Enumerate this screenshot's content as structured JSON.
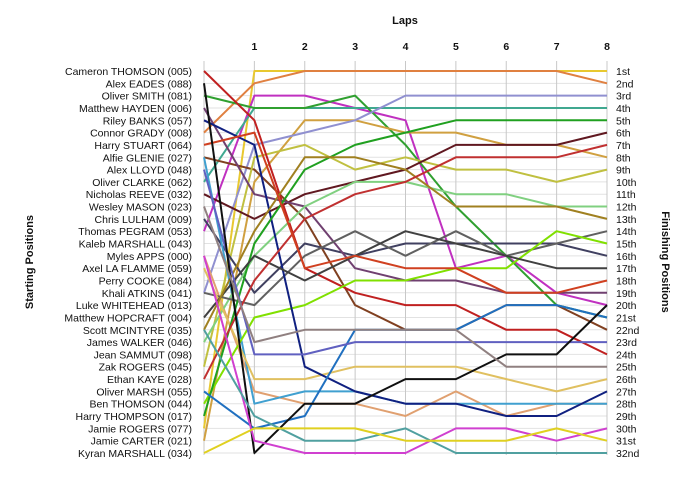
{
  "chart_data": {
    "type": "line",
    "title": "",
    "xlabel": "Laps",
    "ylabel_left": "Starting Positions",
    "ylabel_right": "Finishing Positions",
    "x": [
      0,
      1,
      2,
      3,
      4,
      5,
      6,
      7,
      8
    ],
    "x_tick_labels": [
      "1",
      "2",
      "3",
      "4",
      "5",
      "6",
      "7",
      "8"
    ],
    "y_range": [
      1,
      32
    ],
    "grid": true,
    "drivers": [
      "Cameron THOMSON (005)",
      "Alex EADES (088)",
      "Oliver SMITH (081)",
      "Matthew HAYDEN (006)",
      "Riley BANKS (057)",
      "Connor GRADY (008)",
      "Harry STUART (064)",
      "Alfie GLENIE (027)",
      "Alex LLOYD (048)",
      "Oliver CLARKE (062)",
      "Nicholas REEVE (032)",
      "Wesley MASON (023)",
      "Chris LULHAM (009)",
      "Thomas PEGRAM (053)",
      "Kaleb MARSHALL (043)",
      "Myles APPS (000)",
      "Axel LA FLAMME (059)",
      "Perry COOKE (084)",
      "Khali ATKINS (041)",
      "Luke WHITEHEAD (013)",
      "Matthew HOPCRAFT (004)",
      "Scott MCINTYRE (035)",
      "James WALKER (046)",
      "Jean SAMMUT (098)",
      "Zak ROGERS (045)",
      "Ethan KAYE (028)",
      "Oliver MARSH (055)",
      "Ben THOMSON (044)",
      "Harry THOMPSON (017)",
      "Jamie ROGERS (077)",
      "Jamie CARTER (021)",
      "Kyran MARSHALL (034)"
    ],
    "finish_labels": [
      "1st",
      "2nd",
      "3rd",
      "4th",
      "5th",
      "6th",
      "7th",
      "8th",
      "9th",
      "10th",
      "11th",
      "12th",
      "13th",
      "14th",
      "15th",
      "16th",
      "17th",
      "18th",
      "19th",
      "20th",
      "21st",
      "22nd",
      "23rd",
      "24th",
      "25th",
      "26th",
      "27th",
      "28th",
      "29th",
      "30th",
      "31st",
      "32nd"
    ],
    "series": [
      {
        "color": "#e8c830",
        "positions": [
          30,
          1,
          1,
          1,
          1,
          1,
          1,
          1,
          1
        ]
      },
      {
        "color": "#e08040",
        "positions": [
          6,
          2,
          1,
          1,
          1,
          1,
          1,
          1,
          2
        ]
      },
      {
        "color": "#c030c0",
        "positions": [
          14,
          3,
          3,
          4,
          5,
          17,
          16,
          19,
          20
        ]
      },
      {
        "color": "#40a890",
        "positions": [
          10,
          4,
          4,
          4,
          4,
          4,
          4,
          4,
          4
        ]
      },
      {
        "color": "#30a030",
        "positions": [
          3,
          4,
          4,
          3,
          7,
          12,
          16,
          20,
          21
        ]
      },
      {
        "color": "#d0a040",
        "positions": [
          31,
          10,
          5,
          5,
          6,
          6,
          7,
          7,
          8
        ]
      },
      {
        "color": "#9090d0",
        "positions": [
          19,
          7,
          6,
          5,
          3,
          3,
          3,
          3,
          3
        ]
      },
      {
        "color": "#804020",
        "positions": [
          8,
          9,
          13,
          20,
          22,
          22,
          20,
          20,
          22
        ]
      },
      {
        "color": "#c0c040",
        "positions": [
          25,
          8,
          7,
          9,
          8,
          9,
          9,
          10,
          9
        ]
      },
      {
        "color": "#e0a070",
        "positions": [
          16,
          27,
          28,
          28,
          29,
          27,
          29,
          28,
          28
        ]
      },
      {
        "color": "#601820",
        "positions": [
          11,
          13,
          11,
          10,
          9,
          7,
          7,
          7,
          6
        ]
      },
      {
        "color": "#c02020",
        "positions": [
          1,
          5,
          17,
          19,
          20,
          20,
          22,
          22,
          24
        ]
      },
      {
        "color": "#404060",
        "positions": [
          13,
          19,
          15,
          16,
          15,
          15,
          15,
          15,
          16
        ]
      },
      {
        "color": "#40a0d0",
        "positions": [
          8,
          28,
          27,
          27,
          28,
          28,
          28,
          28,
          28
        ]
      },
      {
        "color": "#704070",
        "positions": [
          4,
          11,
          12,
          17,
          18,
          18,
          19,
          19,
          19
        ]
      },
      {
        "color": "#80d080",
        "positions": [
          23,
          16,
          12,
          10,
          10,
          11,
          11,
          12,
          12
        ]
      },
      {
        "color": "#606060",
        "positions": [
          19,
          20,
          16,
          14,
          16,
          14,
          16,
          15,
          14
        ]
      },
      {
        "color": "#80e000",
        "positions": [
          28,
          21,
          20,
          18,
          18,
          17,
          17,
          14,
          15
        ]
      },
      {
        "color": "#e0c060",
        "positions": [
          17,
          26,
          26,
          25,
          25,
          25,
          26,
          27,
          26
        ]
      },
      {
        "color": "#102080",
        "positions": [
          5,
          7,
          25,
          27,
          28,
          28,
          29,
          29,
          27
        ]
      },
      {
        "color": "#20a020",
        "positions": [
          29,
          15,
          9,
          7,
          6,
          5,
          5,
          5,
          5
        ]
      },
      {
        "color": "#404040",
        "positions": [
          21,
          16,
          18,
          16,
          14,
          15,
          16,
          17,
          17
        ]
      },
      {
        "color": "#a08020",
        "positions": [
          22,
          14,
          8,
          8,
          9,
          12,
          12,
          12,
          13
        ]
      },
      {
        "color": "#c03030",
        "positions": [
          26,
          18,
          13,
          11,
          10,
          8,
          8,
          8,
          7
        ]
      },
      {
        "color": "#2070c0",
        "positions": [
          27,
          30,
          29,
          22,
          22,
          22,
          20,
          20,
          21
        ]
      },
      {
        "color": "#6060c0",
        "positions": [
          9,
          24,
          24,
          23,
          23,
          23,
          23,
          23,
          23
        ]
      },
      {
        "color": "#d04020",
        "positions": [
          7,
          6,
          17,
          16,
          17,
          17,
          19,
          19,
          18
        ]
      },
      {
        "color": "#101010",
        "positions": [
          2,
          32,
          28,
          28,
          26,
          26,
          24,
          24,
          20
        ]
      },
      {
        "color": "#908080",
        "positions": [
          12,
          23,
          22,
          22,
          22,
          22,
          25,
          25,
          25
        ]
      },
      {
        "color": "#d040d0",
        "positions": [
          16,
          31,
          32,
          32,
          32,
          30,
          30,
          31,
          30
        ]
      },
      {
        "color": "#50a0a0",
        "positions": [
          22,
          29,
          31,
          31,
          30,
          32,
          32,
          32,
          32
        ]
      },
      {
        "color": "#e0d020",
        "positions": [
          32,
          30,
          30,
          30,
          31,
          31,
          31,
          30,
          31
        ]
      }
    ]
  }
}
